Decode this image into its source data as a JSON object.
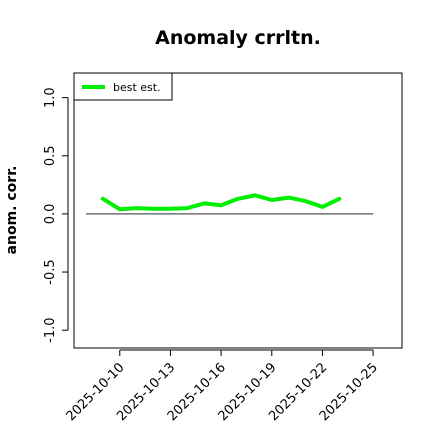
{
  "chart_data": {
    "type": "line",
    "title": "Anomaly crrltn.",
    "xlabel": "",
    "ylabel": "anom. corr.",
    "x": [
      "2025-10-09",
      "2025-10-10",
      "2025-10-11",
      "2025-10-12",
      "2025-10-13",
      "2025-10-14",
      "2025-10-15",
      "2025-10-16",
      "2025-10-17",
      "2025-10-18",
      "2025-10-19",
      "2025-10-20",
      "2025-10-21",
      "2025-10-22",
      "2025-10-23"
    ],
    "series": [
      {
        "name": "best est.",
        "color": "#00ee00",
        "values": [
          0.13,
          0.04,
          0.05,
          0.045,
          0.045,
          0.05,
          0.09,
          0.075,
          0.13,
          0.16,
          0.12,
          0.14,
          0.11,
          0.06,
          0.13
        ]
      }
    ],
    "xticks": [
      "2025-10-10",
      "2025-10-13",
      "2025-10-16",
      "2025-10-19",
      "2025-10-22",
      "2025-10-25"
    ],
    "xlim": [
      "2025-10-08",
      "2025-10-26"
    ],
    "yticks": [
      "-1.0",
      "-0.5",
      "0.0",
      "0.5",
      "1.0"
    ],
    "ylim": [
      -1.05,
      1.1
    ],
    "reference_line": 0,
    "reference_color": "#555555",
    "grid": false,
    "legend_position": "top-left"
  }
}
